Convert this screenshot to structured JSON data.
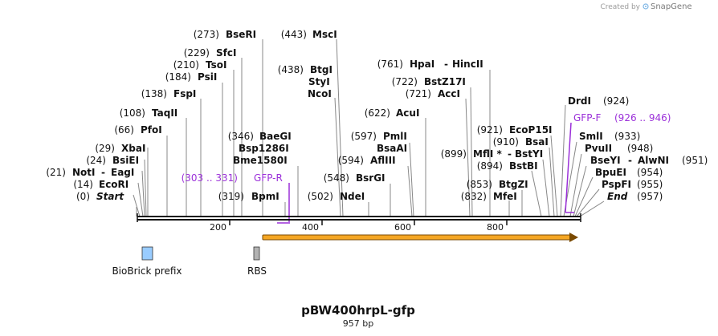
{
  "credit": {
    "prefix": "Created by",
    "brand": "SnapGene"
  },
  "map": {
    "name": "pBW400hrpL-gfp",
    "length_label": "957 bp",
    "length_bp": 957,
    "ticks": [
      "200",
      "400",
      "600",
      "800"
    ]
  },
  "sites": [
    {
      "pos": "(0)",
      "name": "Start",
      "italic": true
    },
    {
      "pos": "(14)",
      "name": "EcoRI"
    },
    {
      "pos": "(21)",
      "name": "NotI",
      "name2": "EagI"
    },
    {
      "pos": "(24)",
      "name": "BsiEI"
    },
    {
      "pos": "(29)",
      "name": "XbaI"
    },
    {
      "pos": "(66)",
      "name": "PfoI"
    },
    {
      "pos": "(108)",
      "name": "TaqII"
    },
    {
      "pos": "(138)",
      "name": "FspI"
    },
    {
      "pos": "(184)",
      "name": "PsiI"
    },
    {
      "pos": "(210)",
      "name": "TsoI"
    },
    {
      "pos": "(229)",
      "name": "SfcI"
    },
    {
      "pos": "(273)",
      "name": "BseRI"
    },
    {
      "pos": "(319)",
      "name": "BpmI"
    },
    {
      "pos": "(346)",
      "name": "BaeGI",
      "extra": [
        "Bsp1286I",
        "Bme1580I"
      ]
    },
    {
      "pos": "(443)",
      "name": "MscI"
    },
    {
      "pos": "(438)",
      "name": "BtgI",
      "extra": [
        "StyI",
        "NcoI"
      ]
    },
    {
      "pos": "(502)",
      "name": "NdeI"
    },
    {
      "pos": "(548)",
      "name": "BsrGI"
    },
    {
      "pos": "(594)",
      "name": "AflIII"
    },
    {
      "pos": "(597)",
      "name": "PmlI",
      "extra": [
        "BsaAI"
      ]
    },
    {
      "pos": "(622)",
      "name": "AcuI"
    },
    {
      "pos": "(721)",
      "name": "AccI"
    },
    {
      "pos": "(722)",
      "name": "BstZ17I"
    },
    {
      "pos": "(761)",
      "name": "HpaI",
      "name2": "HincII"
    },
    {
      "pos": "(832)",
      "name": "MfeI"
    },
    {
      "pos": "(853)",
      "name": "BtgZI"
    },
    {
      "pos": "(894)",
      "name": "BstBI"
    },
    {
      "pos": "(899)",
      "name": "MflI *",
      "name2": "BstYI"
    },
    {
      "pos": "(910)",
      "name": "BsaI"
    },
    {
      "pos": "(921)",
      "name": "EcoP15I"
    },
    {
      "pos": "(924)",
      "name": "DrdI"
    },
    {
      "pos": "(933)",
      "name": "SmlI"
    },
    {
      "pos": "(948)",
      "name": "PvuII"
    },
    {
      "pos": "(951)",
      "name": "BseYI",
      "name2": "AlwNI"
    },
    {
      "pos": "(954)",
      "name": "BpuEI"
    },
    {
      "pos": "(955)",
      "name": "PspFI"
    },
    {
      "pos": "(957)",
      "name": "End",
      "italic": true
    }
  ],
  "primers": [
    {
      "name": "GFP-R",
      "range": "(303 .. 331)",
      "color": "#9b30d9"
    },
    {
      "name": "GFP-F",
      "range": "(926 .. 946)",
      "color": "#9b30d9"
    }
  ],
  "features": [
    {
      "name": "BioBrick prefix",
      "color": "#99ccff"
    },
    {
      "name": "RBS",
      "color": "#b3b3b3"
    }
  ],
  "orf_color": "#f5a623",
  "backbone_color": "#111111"
}
